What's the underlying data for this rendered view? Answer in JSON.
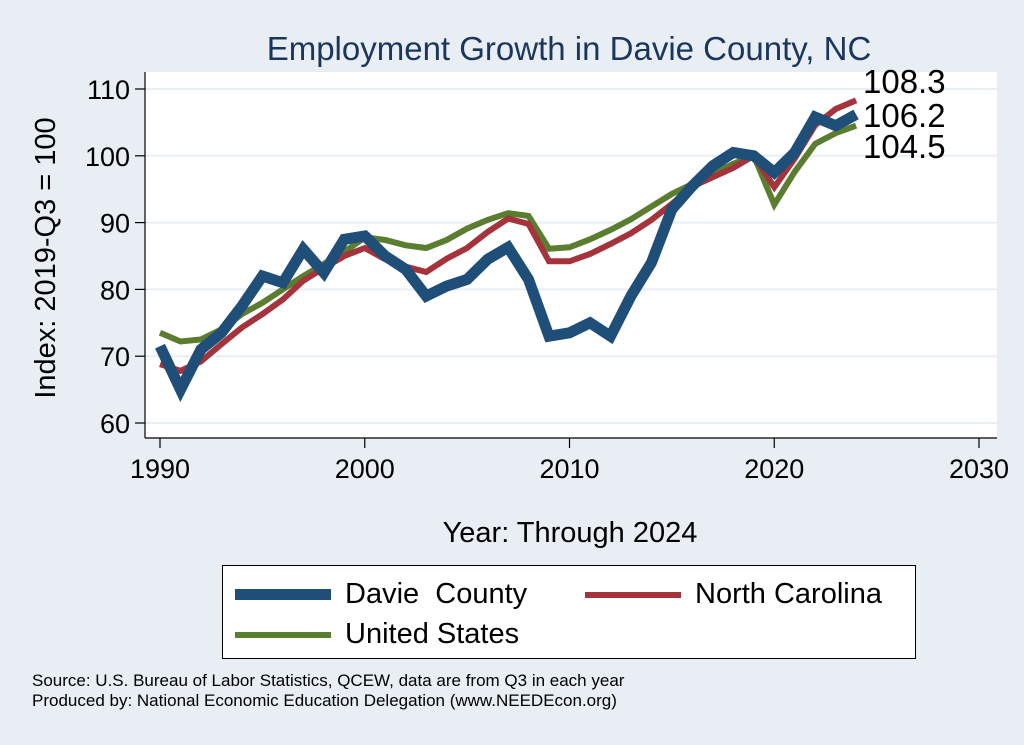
{
  "chart_data": {
    "type": "line",
    "title": "Employment Growth in Davie County, NC",
    "xlabel": "Year: Through 2024",
    "ylabel": "Index: 2019-Q3 = 100",
    "xlim": [
      1990,
      2030
    ],
    "ylim": [
      58,
      112
    ],
    "xticks": [
      1990,
      2000,
      2010,
      2020,
      2030
    ],
    "yticks": [
      60,
      70,
      80,
      90,
      100,
      110
    ],
    "grid": true,
    "x": [
      1990,
      1991,
      1992,
      1993,
      1994,
      1995,
      1996,
      1997,
      1998,
      1999,
      2000,
      2001,
      2002,
      2003,
      2004,
      2005,
      2006,
      2007,
      2008,
      2009,
      2010,
      2011,
      2012,
      2013,
      2014,
      2015,
      2016,
      2017,
      2018,
      2019,
      2020,
      2021,
      2022,
      2023,
      2024
    ],
    "series": [
      {
        "name": "Davie  County",
        "color": "#1f4e79",
        "width": 11,
        "values": [
          71.5,
          65,
          71,
          73.5,
          77.5,
          82,
          81,
          86,
          82.5,
          87.5,
          88,
          85,
          83,
          79,
          80.5,
          81.5,
          84.5,
          86.3,
          81.5,
          73,
          73.5,
          75,
          73,
          79,
          84,
          92,
          95.5,
          98.5,
          100.5,
          100,
          97.5,
          100.5,
          105.8,
          104.5,
          106.2
        ],
        "end_label": "106.2"
      },
      {
        "name": "North Carolina",
        "color": "#a4333c",
        "width": 6,
        "values": [
          68.8,
          67.8,
          69.2,
          71.8,
          74.3,
          76.3,
          78.5,
          81.3,
          83.2,
          85,
          86.2,
          84.5,
          83.4,
          82.6,
          84.6,
          86.2,
          88.6,
          90.6,
          89.8,
          84.2,
          84.2,
          85.3,
          86.8,
          88.4,
          90.4,
          92.8,
          95.4,
          96.8,
          98.2,
          100,
          95.3,
          99.6,
          104.6,
          107,
          108.3
        ],
        "end_label": "108.3"
      },
      {
        "name": "United States",
        "color": "#5b7d2f",
        "width": 6,
        "values": [
          73.5,
          72.2,
          72.5,
          74,
          76.3,
          78,
          80,
          82,
          83.8,
          85.6,
          87.8,
          87.4,
          86.6,
          86.2,
          87.4,
          89.1,
          90.4,
          91.4,
          91,
          86.1,
          86.3,
          87.5,
          88.9,
          90.5,
          92.4,
          94.3,
          95.8,
          97.3,
          98.8,
          100,
          92.7,
          97.6,
          101.8,
          103.4,
          104.5
        ],
        "end_label": "104.5"
      }
    ],
    "legend": {
      "placement": "bottom",
      "entries": [
        "Davie  County",
        "North Carolina",
        "United States"
      ]
    },
    "background_color": "#e8eef3",
    "plot_background_color": "#ffffff",
    "grid_color": "#e8eef3",
    "title_color": "#1b365d"
  },
  "notes": {
    "source": "Source: U.S. Bureau of Labor Statistics, QCEW, data are from Q3 in each year",
    "produced_by": "Produced by: National Economic Education Delegation (www.NEEDEcon.org)"
  }
}
